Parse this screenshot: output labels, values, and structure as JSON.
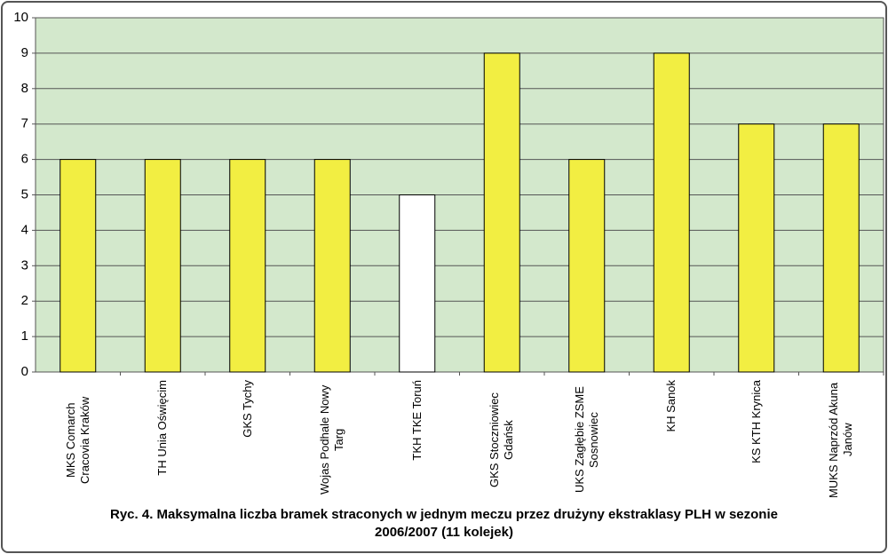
{
  "chart_data": {
    "type": "bar",
    "title": "Ryc. 4. Maksymalna liczba bramek straconych w jednym meczu przez drużyny ekstraklasy PLH w sezonie 2006/2007 (11 kolejek)",
    "categories": [
      "MKS Comarch Cracovia Kraków",
      "TH Unia Oświęcim",
      "GKS Tychy",
      "Wojas Podhale Nowy Targ",
      "TKH TKE Toruń",
      "GKS Stoczniowiec Gdańsk",
      "UKS Zagłębie ZSME Sosnowiec",
      "KH Sanok",
      "KS KTH Krynica",
      "MUKS Naprzód Akuna Janów"
    ],
    "values": [
      6,
      6,
      6,
      6,
      5,
      9,
      6,
      9,
      7,
      7
    ],
    "colors": [
      "#f2ee42",
      "#f2ee42",
      "#f2ee42",
      "#f2ee42",
      "#ffffff",
      "#f2ee42",
      "#f2ee42",
      "#f2ee42",
      "#f2ee42",
      "#f2ee42"
    ],
    "ylim": [
      0,
      10
    ],
    "yticks": [
      0,
      1,
      2,
      3,
      4,
      5,
      6,
      7,
      8,
      9,
      10
    ],
    "grid": true
  }
}
